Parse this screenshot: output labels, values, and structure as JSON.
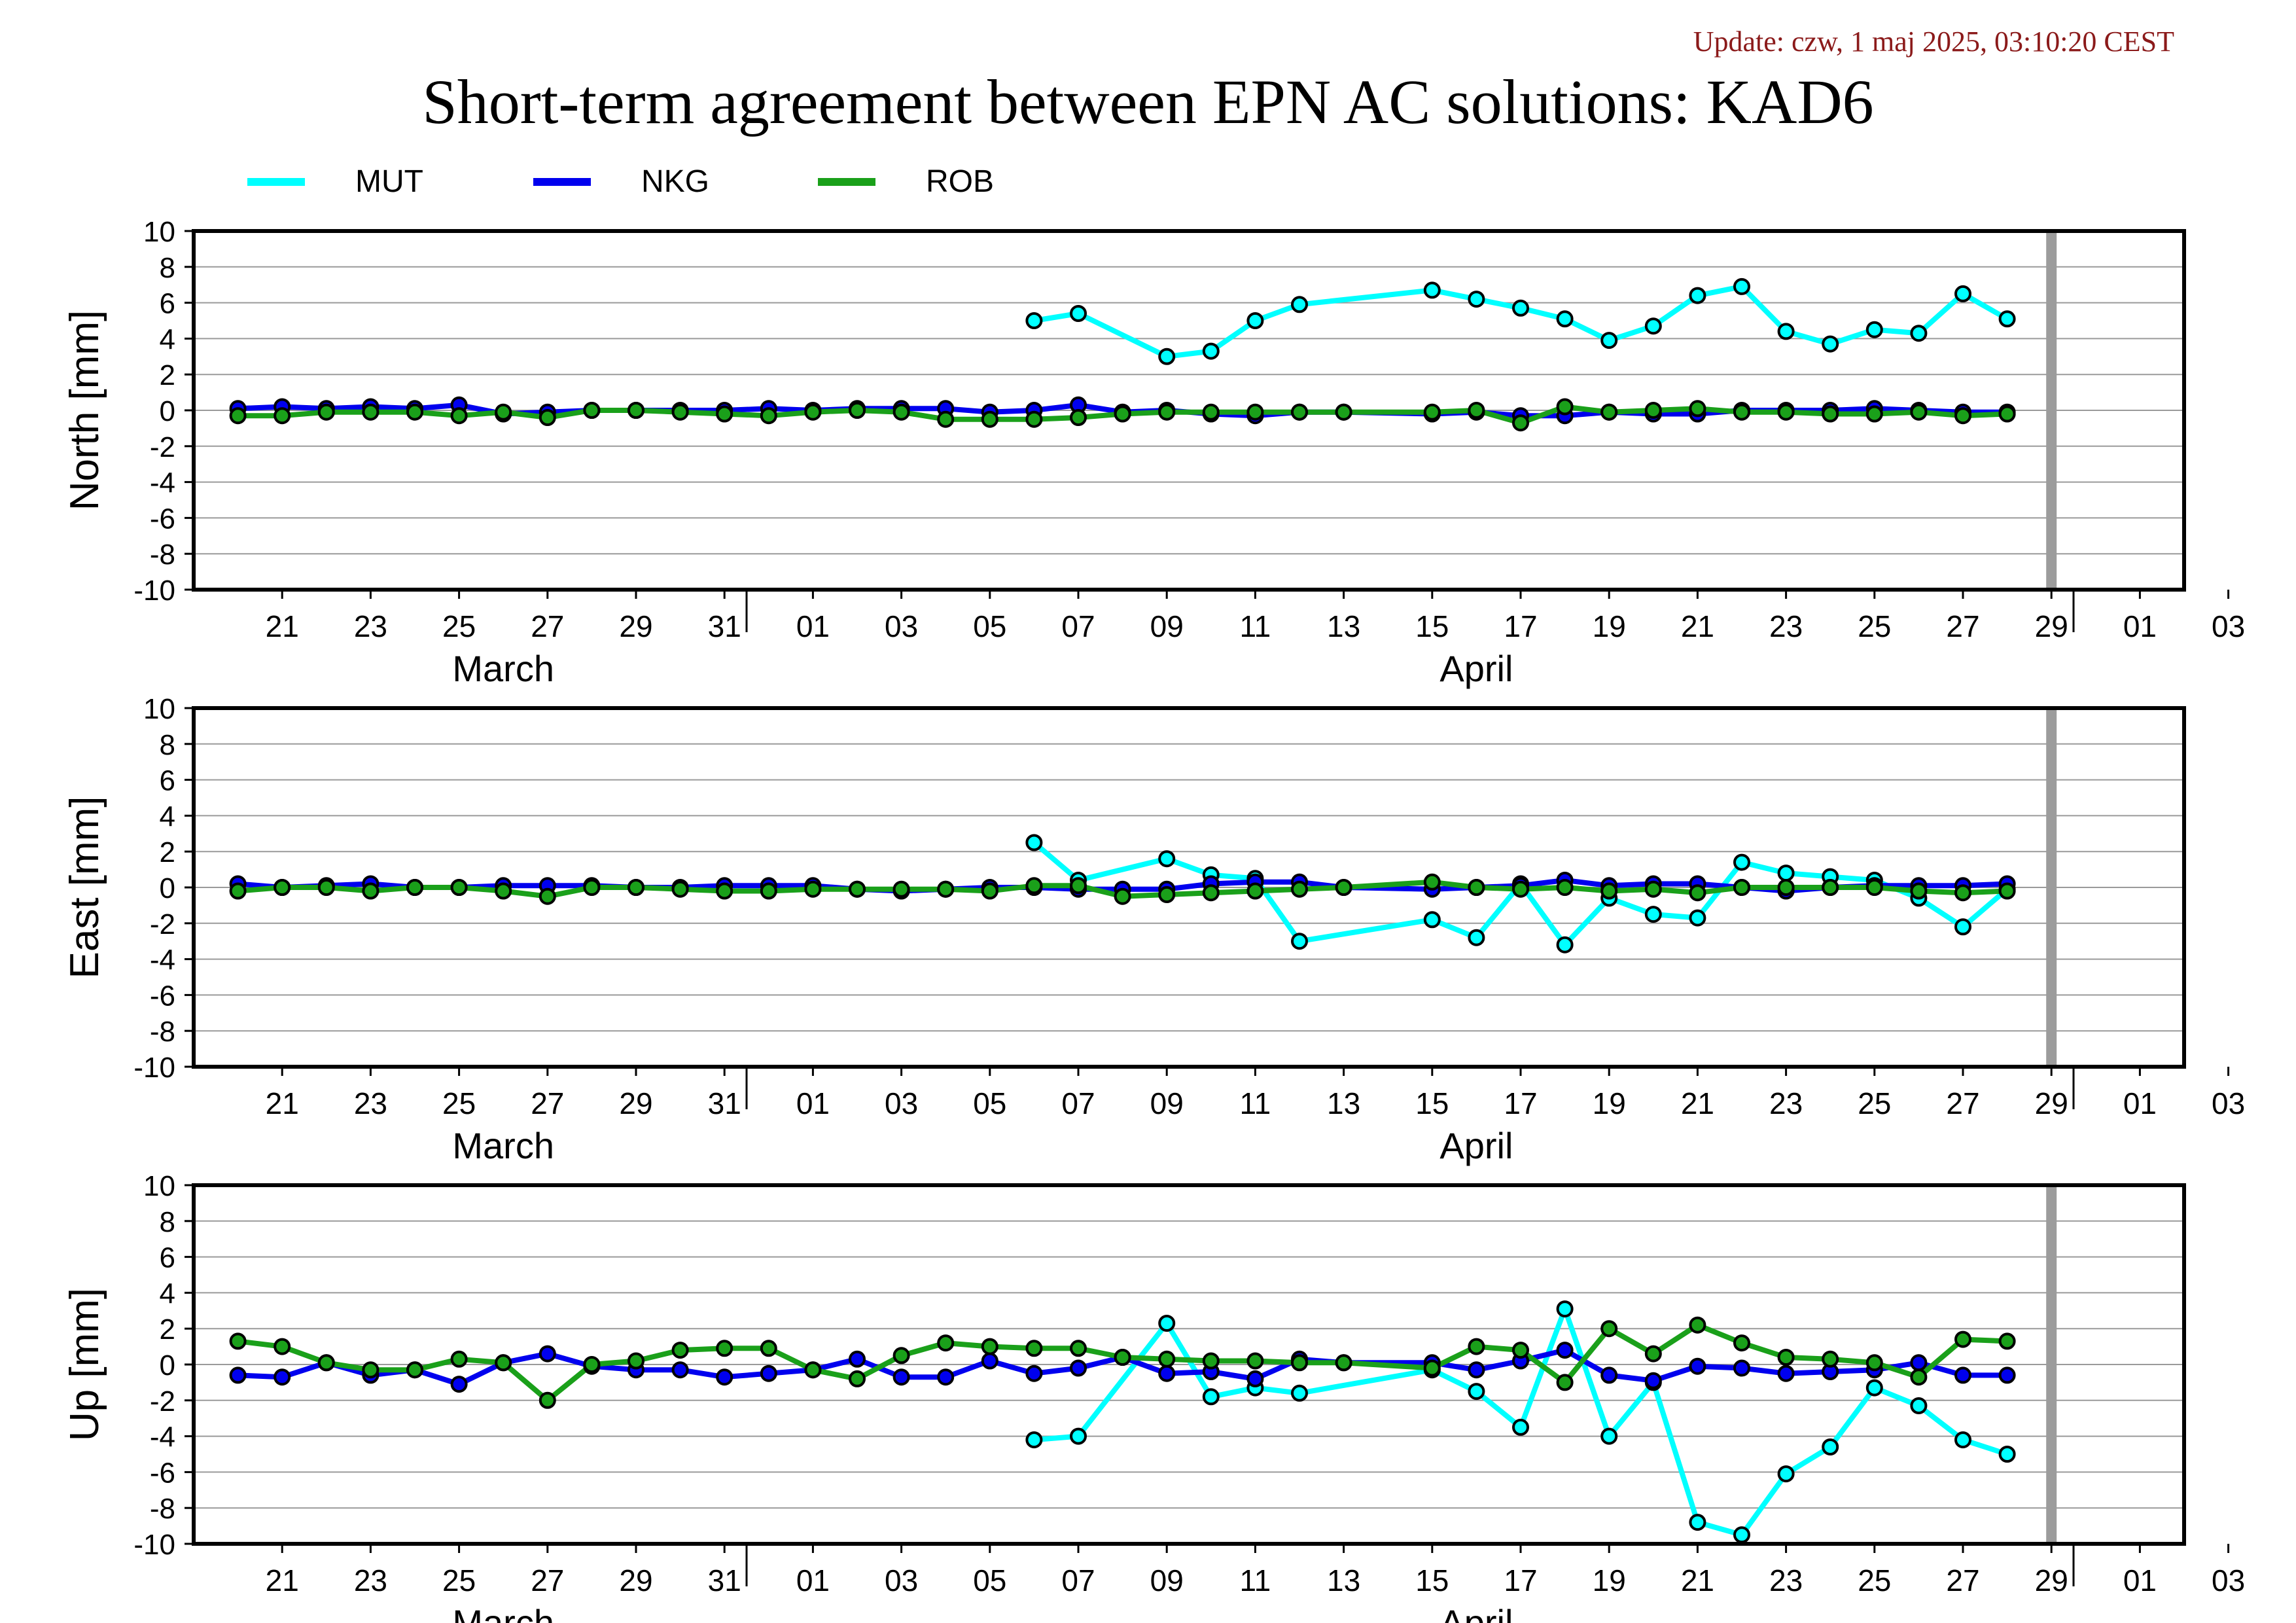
{
  "update_text": "Update: czw, 1 maj 2025, 03:10:20 CEST",
  "title": "Short-term agreement between EPN AC solutions: KAD6",
  "colors": {
    "MUT": "#00ffff",
    "NKG": "#0000ee",
    "ROB": "#1aa01a",
    "gap_bar": "#9c9c9c",
    "update_text": "#8b1a1a"
  },
  "legend": [
    {
      "name": "MUT",
      "color": "#00ffff"
    },
    {
      "name": "NKG",
      "color": "#0000ee"
    },
    {
      "name": "ROB",
      "color": "#1aa01a"
    }
  ],
  "chart_data": [
    {
      "type": "line",
      "ylabel": "North [mm]",
      "ylim": [
        -10,
        10
      ],
      "yticks": [
        10,
        8,
        6,
        4,
        2,
        0,
        -2,
        -4,
        -6,
        -8,
        -10
      ],
      "xlim": [
        "2025-03-19T12:00",
        "2025-05-03T12:00"
      ],
      "xticks": [
        "21",
        "23",
        "25",
        "27",
        "29",
        "31",
        "01",
        "03",
        "05",
        "07",
        "09",
        "11",
        "13",
        "15",
        "17",
        "19",
        "21",
        "23",
        "25",
        "27",
        "29",
        "01",
        "03"
      ],
      "months": [
        "March",
        "April"
      ],
      "grid": true,
      "legend_position": "top-left, above plots",
      "series": [
        {
          "name": "MUT",
          "x": [
            "2025-04-07",
            "2025-04-08",
            "2025-04-10",
            "2025-04-11",
            "2025-04-12",
            "2025-04-13",
            "2025-04-16",
            "2025-04-17",
            "2025-04-18",
            "2025-04-19",
            "2025-04-20",
            "2025-04-21",
            "2025-04-22",
            "2025-04-23",
            "2025-04-24",
            "2025-04-25",
            "2025-04-26",
            "2025-04-27",
            "2025-04-28",
            "2025-04-29"
          ],
          "values": [
            5.0,
            5.4,
            3.0,
            3.3,
            5.0,
            5.9,
            6.7,
            6.2,
            5.7,
            5.1,
            3.9,
            4.7,
            6.4,
            6.9,
            4.4,
            3.7,
            4.5,
            4.3,
            6.5,
            5.1
          ]
        },
        {
          "name": "NKG",
          "x": [
            "2025-03-20",
            "2025-03-21",
            "2025-03-22",
            "2025-03-23",
            "2025-03-24",
            "2025-03-25",
            "2025-03-26",
            "2025-03-27",
            "2025-03-28",
            "2025-03-29",
            "2025-03-30",
            "2025-03-31",
            "2025-04-01",
            "2025-04-02",
            "2025-04-03",
            "2025-04-04",
            "2025-04-05",
            "2025-04-06",
            "2025-04-07",
            "2025-04-08",
            "2025-04-09",
            "2025-04-10",
            "2025-04-11",
            "2025-04-12",
            "2025-04-13",
            "2025-04-14",
            "2025-04-16",
            "2025-04-17",
            "2025-04-18",
            "2025-04-19",
            "2025-04-20",
            "2025-04-21",
            "2025-04-22",
            "2025-04-23",
            "2025-04-24",
            "2025-04-25",
            "2025-04-26",
            "2025-04-27",
            "2025-04-28",
            "2025-04-29"
          ],
          "values": [
            0.1,
            0.2,
            0.1,
            0.2,
            0.1,
            0.3,
            -0.2,
            -0.1,
            0.0,
            0.0,
            0.0,
            0.0,
            0.1,
            0.0,
            0.1,
            0.1,
            0.1,
            -0.1,
            0.0,
            0.3,
            -0.1,
            0.0,
            -0.2,
            -0.3,
            -0.1,
            -0.1,
            -0.2,
            -0.1,
            -0.3,
            -0.3,
            -0.1,
            -0.2,
            -0.2,
            0.0,
            0.0,
            0.0,
            0.1,
            0.0,
            -0.1,
            -0.1
          ]
        },
        {
          "name": "ROB",
          "x": [
            "2025-03-20",
            "2025-03-21",
            "2025-03-22",
            "2025-03-23",
            "2025-03-24",
            "2025-03-25",
            "2025-03-26",
            "2025-03-27",
            "2025-03-28",
            "2025-03-29",
            "2025-03-30",
            "2025-03-31",
            "2025-04-01",
            "2025-04-02",
            "2025-04-03",
            "2025-04-04",
            "2025-04-05",
            "2025-04-06",
            "2025-04-07",
            "2025-04-08",
            "2025-04-09",
            "2025-04-10",
            "2025-04-11",
            "2025-04-12",
            "2025-04-13",
            "2025-04-14",
            "2025-04-16",
            "2025-04-17",
            "2025-04-18",
            "2025-04-19",
            "2025-04-20",
            "2025-04-21",
            "2025-04-22",
            "2025-04-23",
            "2025-04-24",
            "2025-04-25",
            "2025-04-26",
            "2025-04-27",
            "2025-04-28",
            "2025-04-29"
          ],
          "values": [
            -0.3,
            -0.3,
            -0.1,
            -0.1,
            -0.1,
            -0.3,
            -0.1,
            -0.4,
            0.0,
            0.0,
            -0.1,
            -0.2,
            -0.3,
            -0.1,
            0.0,
            -0.1,
            -0.5,
            -0.5,
            -0.5,
            -0.4,
            -0.2,
            -0.1,
            -0.1,
            -0.1,
            -0.1,
            -0.1,
            -0.1,
            0.0,
            -0.7,
            0.2,
            -0.1,
            0.0,
            0.1,
            -0.1,
            -0.1,
            -0.2,
            -0.2,
            -0.1,
            -0.3,
            -0.2
          ]
        }
      ]
    },
    {
      "type": "line",
      "ylabel": "East [mm]",
      "ylim": [
        -10,
        10
      ],
      "yticks": [
        10,
        8,
        6,
        4,
        2,
        0,
        -2,
        -4,
        -6,
        -8,
        -10
      ],
      "xlim": [
        "2025-03-19T12:00",
        "2025-05-03T12:00"
      ],
      "xticks": [
        "21",
        "23",
        "25",
        "27",
        "29",
        "31",
        "01",
        "03",
        "05",
        "07",
        "09",
        "11",
        "13",
        "15",
        "17",
        "19",
        "21",
        "23",
        "25",
        "27",
        "29",
        "01",
        "03"
      ],
      "months": [
        "March",
        "April"
      ],
      "grid": true,
      "series": [
        {
          "name": "MUT",
          "x": [
            "2025-04-07",
            "2025-04-08",
            "2025-04-10",
            "2025-04-11",
            "2025-04-12",
            "2025-04-13",
            "2025-04-16",
            "2025-04-17",
            "2025-04-18",
            "2025-04-19",
            "2025-04-20",
            "2025-04-21",
            "2025-04-22",
            "2025-04-23",
            "2025-04-24",
            "2025-04-25",
            "2025-04-26",
            "2025-04-27",
            "2025-04-28",
            "2025-04-29"
          ],
          "values": [
            2.5,
            0.4,
            1.6,
            0.7,
            0.5,
            -3.0,
            -1.8,
            -2.8,
            0.2,
            -3.2,
            -0.6,
            -1.5,
            -1.7,
            1.4,
            0.8,
            0.6,
            0.4,
            -0.6,
            -2.2,
            -0.1
          ]
        },
        {
          "name": "NKG",
          "x": [
            "2025-03-20",
            "2025-03-21",
            "2025-03-22",
            "2025-03-23",
            "2025-03-24",
            "2025-03-25",
            "2025-03-26",
            "2025-03-27",
            "2025-03-28",
            "2025-03-29",
            "2025-03-30",
            "2025-03-31",
            "2025-04-01",
            "2025-04-02",
            "2025-04-03",
            "2025-04-04",
            "2025-04-05",
            "2025-04-06",
            "2025-04-07",
            "2025-04-08",
            "2025-04-09",
            "2025-04-10",
            "2025-04-11",
            "2025-04-12",
            "2025-04-13",
            "2025-04-14",
            "2025-04-16",
            "2025-04-17",
            "2025-04-18",
            "2025-04-19",
            "2025-04-20",
            "2025-04-21",
            "2025-04-22",
            "2025-04-23",
            "2025-04-24",
            "2025-04-25",
            "2025-04-26",
            "2025-04-27",
            "2025-04-28",
            "2025-04-29"
          ],
          "values": [
            0.2,
            0.0,
            0.1,
            0.2,
            0.0,
            0.0,
            0.1,
            0.1,
            0.1,
            0.0,
            0.0,
            0.1,
            0.1,
            0.1,
            -0.1,
            -0.2,
            -0.1,
            0.0,
            0.0,
            -0.1,
            -0.1,
            -0.1,
            0.2,
            0.3,
            0.3,
            0.0,
            -0.1,
            0.0,
            0.1,
            0.4,
            0.1,
            0.2,
            0.2,
            0.0,
            -0.2,
            0.0,
            0.1,
            0.1,
            0.1,
            0.2
          ]
        },
        {
          "name": "ROB",
          "x": [
            "2025-03-20",
            "2025-03-21",
            "2025-03-22",
            "2025-03-23",
            "2025-03-24",
            "2025-03-25",
            "2025-03-26",
            "2025-03-27",
            "2025-03-28",
            "2025-03-29",
            "2025-03-30",
            "2025-03-31",
            "2025-04-01",
            "2025-04-02",
            "2025-04-03",
            "2025-04-04",
            "2025-04-05",
            "2025-04-06",
            "2025-04-07",
            "2025-04-08",
            "2025-04-09",
            "2025-04-10",
            "2025-04-11",
            "2025-04-12",
            "2025-04-13",
            "2025-04-14",
            "2025-04-16",
            "2025-04-17",
            "2025-04-18",
            "2025-04-19",
            "2025-04-20",
            "2025-04-21",
            "2025-04-22",
            "2025-04-23",
            "2025-04-24",
            "2025-04-25",
            "2025-04-26",
            "2025-04-27",
            "2025-04-28",
            "2025-04-29"
          ],
          "values": [
            -0.2,
            0.0,
            0.0,
            -0.2,
            0.0,
            0.0,
            -0.2,
            -0.5,
            0.0,
            0.0,
            -0.1,
            -0.2,
            -0.2,
            -0.1,
            -0.1,
            -0.1,
            -0.1,
            -0.2,
            0.1,
            0.1,
            -0.5,
            -0.4,
            -0.3,
            -0.2,
            -0.1,
            0.0,
            0.3,
            0.0,
            -0.1,
            0.0,
            -0.2,
            -0.1,
            -0.3,
            0.0,
            0.0,
            0.0,
            0.0,
            -0.2,
            -0.3,
            -0.2
          ]
        }
      ]
    },
    {
      "type": "line",
      "ylabel": "Up [mm]",
      "ylim": [
        -10,
        10
      ],
      "yticks": [
        10,
        8,
        6,
        4,
        2,
        0,
        -2,
        -4,
        -6,
        -8,
        -10
      ],
      "xlim": [
        "2025-03-19T12:00",
        "2025-05-03T12:00"
      ],
      "xticks": [
        "21",
        "23",
        "25",
        "27",
        "29",
        "31",
        "01",
        "03",
        "05",
        "07",
        "09",
        "11",
        "13",
        "15",
        "17",
        "19",
        "21",
        "23",
        "25",
        "27",
        "29",
        "01",
        "03"
      ],
      "months": [
        "March",
        "April"
      ],
      "grid": true,
      "series": [
        {
          "name": "MUT",
          "x": [
            "2025-04-07",
            "2025-04-08",
            "2025-04-10",
            "2025-04-11",
            "2025-04-12",
            "2025-04-13",
            "2025-04-16",
            "2025-04-17",
            "2025-04-18",
            "2025-04-19",
            "2025-04-20",
            "2025-04-21",
            "2025-04-22",
            "2025-04-23",
            "2025-04-24",
            "2025-04-25",
            "2025-04-26",
            "2025-04-27",
            "2025-04-28",
            "2025-04-29"
          ],
          "values": [
            -4.2,
            -4.0,
            2.3,
            -1.8,
            -1.3,
            -1.6,
            -0.3,
            -1.5,
            -3.5,
            3.1,
            -4.0,
            -1.0,
            -8.8,
            -9.5,
            -6.1,
            -4.6,
            -1.3,
            -2.3,
            -4.2,
            -5.0
          ]
        },
        {
          "name": "NKG",
          "x": [
            "2025-03-20",
            "2025-03-21",
            "2025-03-22",
            "2025-03-23",
            "2025-03-24",
            "2025-03-25",
            "2025-03-26",
            "2025-03-27",
            "2025-03-28",
            "2025-03-29",
            "2025-03-30",
            "2025-03-31",
            "2025-04-01",
            "2025-04-02",
            "2025-04-03",
            "2025-04-04",
            "2025-04-05",
            "2025-04-06",
            "2025-04-07",
            "2025-04-08",
            "2025-04-09",
            "2025-04-10",
            "2025-04-11",
            "2025-04-12",
            "2025-04-13",
            "2025-04-14",
            "2025-04-16",
            "2025-04-17",
            "2025-04-18",
            "2025-04-19",
            "2025-04-20",
            "2025-04-21",
            "2025-04-22",
            "2025-04-23",
            "2025-04-24",
            "2025-04-25",
            "2025-04-26",
            "2025-04-27",
            "2025-04-28",
            "2025-04-29"
          ],
          "values": [
            -0.6,
            -0.7,
            0.1,
            -0.6,
            -0.3,
            -1.1,
            0.1,
            0.6,
            -0.1,
            -0.3,
            -0.3,
            -0.7,
            -0.5,
            -0.3,
            0.3,
            -0.7,
            -0.7,
            0.2,
            -0.5,
            -0.2,
            0.4,
            -0.5,
            -0.4,
            -0.8,
            0.3,
            0.1,
            0.1,
            -0.3,
            0.2,
            0.8,
            -0.6,
            -0.9,
            -0.1,
            -0.2,
            -0.5,
            -0.4,
            -0.3,
            0.1,
            -0.6,
            -0.6
          ]
        },
        {
          "name": "ROB",
          "x": [
            "2025-03-20",
            "2025-03-21",
            "2025-03-22",
            "2025-03-23",
            "2025-03-24",
            "2025-03-25",
            "2025-03-26",
            "2025-03-27",
            "2025-03-28",
            "2025-03-29",
            "2025-03-30",
            "2025-03-31",
            "2025-04-01",
            "2025-04-02",
            "2025-04-03",
            "2025-04-04",
            "2025-04-05",
            "2025-04-06",
            "2025-04-07",
            "2025-04-08",
            "2025-04-09",
            "2025-04-10",
            "2025-04-11",
            "2025-04-12",
            "2025-04-13",
            "2025-04-14",
            "2025-04-16",
            "2025-04-17",
            "2025-04-18",
            "2025-04-19",
            "2025-04-20",
            "2025-04-21",
            "2025-04-22",
            "2025-04-23",
            "2025-04-24",
            "2025-04-25",
            "2025-04-26",
            "2025-04-27",
            "2025-04-28",
            "2025-04-29"
          ],
          "values": [
            1.3,
            1.0,
            0.1,
            -0.3,
            -0.3,
            0.3,
            0.1,
            -2.0,
            0.0,
            0.2,
            0.8,
            0.9,
            0.9,
            -0.3,
            -0.8,
            0.5,
            1.2,
            1.0,
            0.9,
            0.9,
            0.4,
            0.3,
            0.2,
            0.2,
            0.1,
            0.1,
            -0.2,
            1.0,
            0.8,
            -1.0,
            2.0,
            0.6,
            2.2,
            1.2,
            0.4,
            0.3,
            0.1,
            -0.7,
            1.4,
            1.3
          ]
        }
      ]
    }
  ]
}
